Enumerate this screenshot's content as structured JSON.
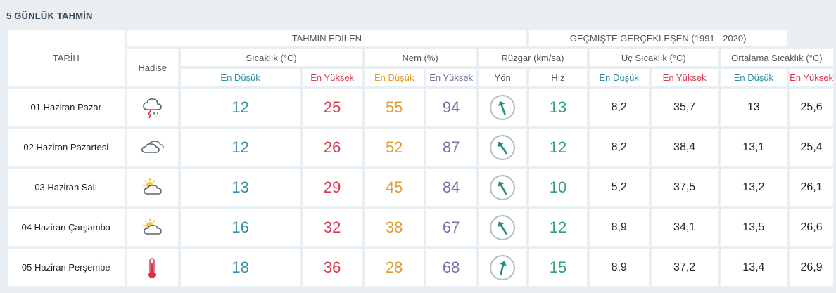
{
  "section_title": "5 GÜNLÜK TAHMİN",
  "headers": {
    "date": "TARİH",
    "forecast_group": "TAHMİN EDİLEN",
    "history_group": "GEÇMİŞTE GERÇEKLEŞEN (1991 - 2020)",
    "event": "Hadise",
    "temp": "Sıcaklık (°C)",
    "humidity": "Nem (%)",
    "wind": "Rüzgar (km/sa)",
    "extreme_temp": "Uç Sıcaklık (°C)",
    "avg_temp": "Ortalama Sıcaklık (°C)",
    "low": "En Düşük",
    "high": "En Yüksek",
    "direction": "Yön",
    "speed": "Hız"
  },
  "colors": {
    "low": "#2e8fa6",
    "high": "#d8394f",
    "humidity_low": "#e19c2b",
    "humidity_high": "#7b6faa",
    "wind_speed": "#2aa08a"
  },
  "rows": [
    {
      "date": "01 Haziran Pazar",
      "icon": "thunderstorm-rain-icon",
      "temp_low": "12",
      "temp_high": "25",
      "hum_low": "55",
      "hum_high": "94",
      "wind_dir_deg": 160,
      "wind_speed": "13",
      "ext_low": "8,2",
      "ext_high": "35,7",
      "avg_low": "13",
      "avg_high": "25,6"
    },
    {
      "date": "02 Haziran Pazartesi",
      "icon": "cloudy-icon",
      "temp_low": "12",
      "temp_high": "26",
      "hum_low": "52",
      "hum_high": "87",
      "wind_dir_deg": 145,
      "wind_speed": "12",
      "ext_low": "8,2",
      "ext_high": "38,4",
      "avg_low": "13,1",
      "avg_high": "25,4"
    },
    {
      "date": "03 Haziran Salı",
      "icon": "partly-cloudy-icon",
      "temp_low": "13",
      "temp_high": "29",
      "hum_low": "45",
      "hum_high": "84",
      "wind_dir_deg": 150,
      "wind_speed": "10",
      "ext_low": "5,2",
      "ext_high": "37,5",
      "avg_low": "13,2",
      "avg_high": "26,1"
    },
    {
      "date": "04 Haziran Çarşamba",
      "icon": "partly-cloudy-icon",
      "temp_low": "16",
      "temp_high": "32",
      "hum_low": "38",
      "hum_high": "67",
      "wind_dir_deg": 148,
      "wind_speed": "12",
      "ext_low": "8,9",
      "ext_high": "34,1",
      "avg_low": "13,5",
      "avg_high": "26,6"
    },
    {
      "date": "05 Haziran Perşembe",
      "icon": "hot-thermometer-icon",
      "temp_low": "18",
      "temp_high": "36",
      "hum_low": "28",
      "hum_high": "68",
      "wind_dir_deg": 195,
      "wind_speed": "15",
      "ext_low": "8,9",
      "ext_high": "37,2",
      "avg_low": "13,4",
      "avg_high": "26,9"
    }
  ]
}
